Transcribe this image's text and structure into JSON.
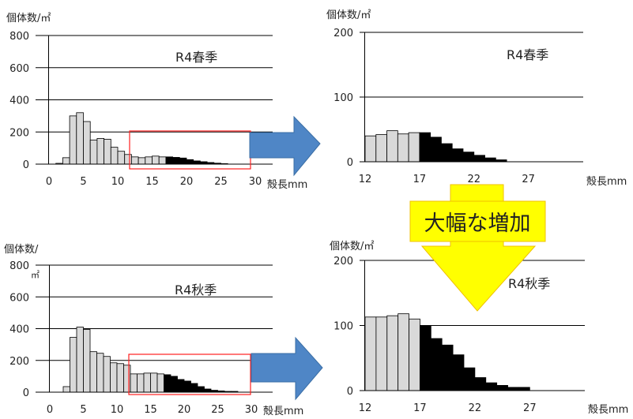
{
  "chart_data": [
    {
      "id": "spring_full",
      "type": "bar",
      "panel_label": "R4春季",
      "ylabel": "個体数/㎡",
      "xlabel": "殻長mm",
      "ylim": [
        0,
        800
      ],
      "yticks": [
        0,
        200,
        400,
        600,
        800
      ],
      "xlim": [
        0,
        30
      ],
      "xticks": [
        0,
        5,
        10,
        15,
        20,
        25,
        30
      ],
      "bin_start": 1,
      "bin_width": 1,
      "values": [
        5,
        40,
        300,
        320,
        265,
        150,
        160,
        155,
        105,
        80,
        60,
        45,
        40,
        45,
        50,
        45,
        45,
        42,
        38,
        28,
        20,
        15,
        10,
        6,
        3
      ],
      "dark_from_x": 17,
      "grid": true
    },
    {
      "id": "spring_zoom",
      "type": "bar",
      "panel_label": "R4春季",
      "ylabel": "個体数/㎡",
      "xlabel": "殻長mm",
      "ylim": [
        0,
        200
      ],
      "yticks": [
        0,
        100,
        200
      ],
      "xlim": [
        12,
        30
      ],
      "xticks": [
        12,
        17,
        22,
        27
      ],
      "bin_start": 12,
      "bin_width": 1,
      "values": [
        40,
        42,
        48,
        43,
        45,
        45,
        38,
        28,
        20,
        15,
        10,
        6,
        3
      ],
      "dark_from_x": 17,
      "grid": true
    },
    {
      "id": "autumn_full",
      "type": "bar",
      "panel_label": "R4秋季",
      "ylabel": "個体数/",
      "ylabel_unit": "㎡",
      "xlabel": "殻長mm",
      "ylim": [
        0,
        800
      ],
      "yticks": [
        0,
        200,
        400,
        600,
        800
      ],
      "xlim": [
        0,
        30
      ],
      "xticks": [
        0,
        5,
        10,
        15,
        20,
        25,
        30
      ],
      "bin_start": 1,
      "bin_width": 1,
      "values": [
        0,
        35,
        345,
        410,
        395,
        255,
        245,
        225,
        185,
        180,
        170,
        115,
        115,
        120,
        120,
        115,
        110,
        100,
        80,
        70,
        55,
        35,
        20,
        12,
        8,
        5,
        5
      ],
      "dark_from_x": 17,
      "grid": true
    },
    {
      "id": "autumn_zoom",
      "type": "bar",
      "panel_label": "R4秋季",
      "ylabel": "個体数/㎡",
      "xlabel": "殻長mm",
      "ylim": [
        0,
        200
      ],
      "yticks": [
        0,
        100,
        200
      ],
      "xlim": [
        12,
        30
      ],
      "xticks": [
        12,
        17,
        22,
        27
      ],
      "bin_start": 12,
      "bin_width": 1,
      "values": [
        113,
        113,
        115,
        118,
        110,
        100,
        80,
        70,
        55,
        35,
        20,
        12,
        8,
        5,
        5
      ],
      "dark_from_x": 17,
      "grid": true
    }
  ],
  "callout": {
    "text": "大幅な増加",
    "arrow_color": "#ffff00",
    "box_color": "#ffff00",
    "border_color": "#f0c000"
  },
  "colors": {
    "light_bar": "#d9d9d9",
    "dark_bar": "#000000",
    "highlight_box": "#ff2020",
    "zoom_arrow": "#4f86c6"
  }
}
